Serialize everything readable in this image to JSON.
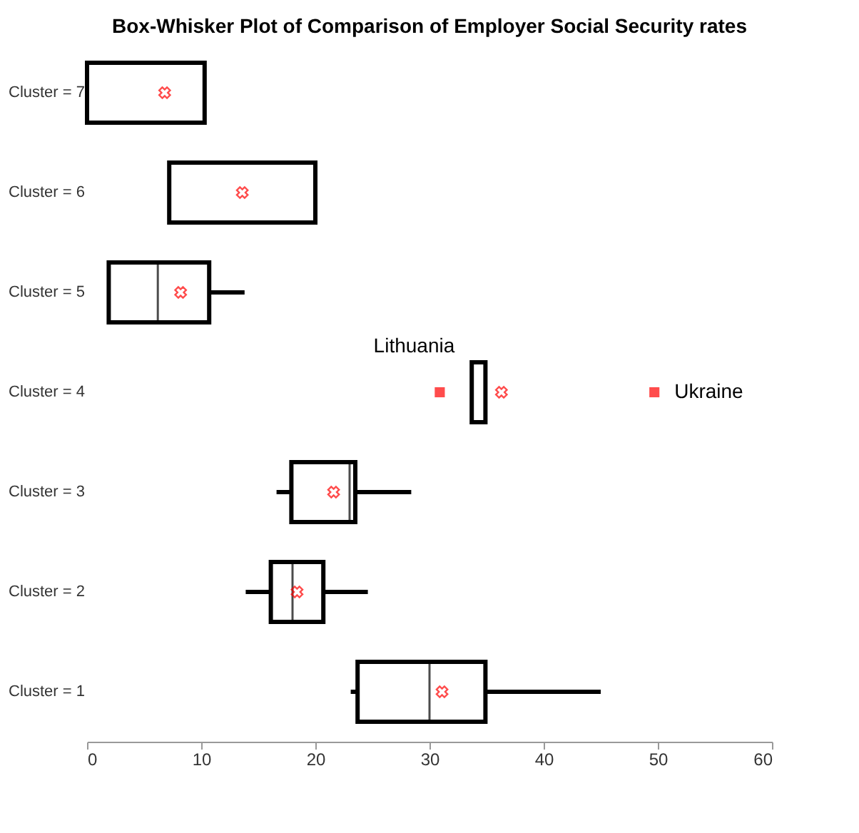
{
  "chart_data": {
    "type": "box",
    "title": "Box-Whisker Plot of Comparison of Employer Social Security rates",
    "orientation": "horizontal",
    "categories": [
      "Cluster = 7",
      "Cluster = 6",
      "Cluster = 5",
      "Cluster = 4",
      "Cluster = 3",
      "Cluster = 2",
      "Cluster = 1"
    ],
    "boxes": [
      {
        "low": 0,
        "q1": 0,
        "median": 10.3,
        "q3": 10.3,
        "high": 10.3,
        "mean": 6.8
      },
      {
        "low": 7.2,
        "q1": 7.2,
        "median": 7.2,
        "q3": 20.0,
        "high": 20.0,
        "mean": 13.6
      },
      {
        "low": 1.9,
        "q1": 1.9,
        "median": 6.2,
        "q3": 10.7,
        "high": 13.8,
        "mean": 8.2
      },
      {
        "low": 33.7,
        "q1": 33.7,
        "median": 34.9,
        "q3": 34.9,
        "high": 34.9,
        "mean": 36.3,
        "outliers": [
          30.9,
          49.7
        ]
      },
      {
        "low": 16.6,
        "q1": 17.9,
        "median": 23.0,
        "q3": 23.5,
        "high": 28.4,
        "mean": 21.6
      },
      {
        "low": 13.9,
        "q1": 16.1,
        "median": 18.0,
        "q3": 20.7,
        "high": 24.6,
        "mean": 18.4
      },
      {
        "low": 23.1,
        "q1": 23.7,
        "median": 30.0,
        "q3": 34.9,
        "high": 45.0,
        "mean": 31.1
      }
    ],
    "color": "#000000",
    "marker": "square",
    "annotations": [
      "Lithuania",
      "Ukraine"
    ],
    "xlim": [
      0,
      60
    ],
    "xticks": [
      0,
      10,
      20,
      30,
      40,
      50,
      60
    ],
    "grid": false
  }
}
